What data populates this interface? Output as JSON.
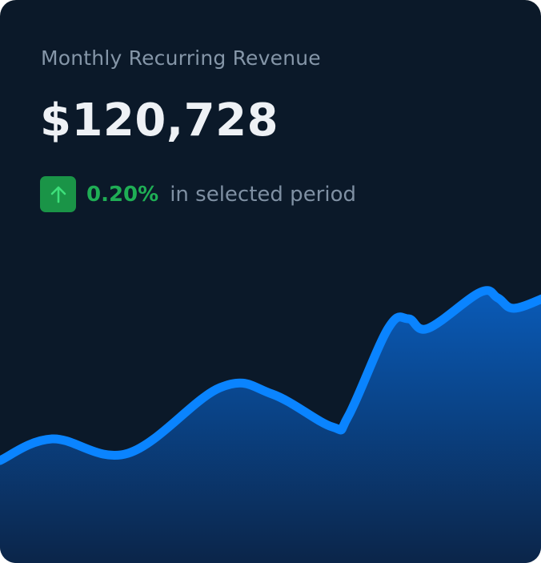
{
  "card": {
    "title": "Monthly Recurring Revenue",
    "value": "$120,728",
    "change": {
      "icon": "arrow-up-icon",
      "percent": "0.20%",
      "label": "in selected period",
      "color": "#1fae55",
      "badge_color": "#1a9447"
    }
  },
  "chart_data": {
    "type": "area",
    "x": [
      0,
      1,
      2,
      3,
      4,
      5,
      6,
      7,
      8,
      9,
      10,
      11,
      12,
      13
    ],
    "values": [
      125,
      152,
      134,
      216,
      208,
      167,
      180,
      290,
      302,
      290,
      335,
      328,
      315,
      328
    ],
    "ylim": [
      0,
      400
    ],
    "grid": false,
    "line_color": "#0a84ff",
    "fill_color_top": "#0a5bb8",
    "fill_color_bottom": "#0b2447"
  }
}
